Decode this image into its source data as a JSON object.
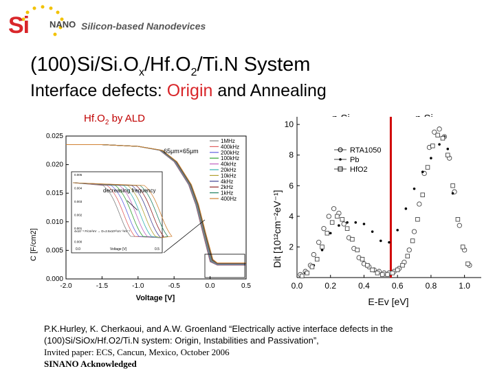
{
  "logo": {
    "brand_si": "Si",
    "brand_nano": "NANO",
    "tagline": "Silicon-based Nanodevices"
  },
  "title_main": "(100)Si/Si.O",
  "title_sub_x": "x",
  "title_mid": "/Hf.O",
  "title_sub_2": "2",
  "title_end": "/Ti.N System",
  "subtitle_before": "Interface defects: ",
  "subtitle_origin": "Origin",
  "subtitle_after": " and Annealing",
  "label_hfo2_a": "Hf.O",
  "label_hfo2_sub": "2",
  "label_hfo2_b": " by ALD",
  "label_psi": "p Si",
  "label_nsi": "n Si",
  "citation": {
    "line1": "P.K.Hurley, K. Cherkaoui, and A.W. Groenland “Electrically active interface defects in the",
    "line2": "(100)Si/SiOx/Hf.O2/Ti.N system: Origin, Instabilities and Passivation”,",
    "line3": "Invited paper: ECS, Cancun, Mexico, October 2006",
    "ack": "SINANO Acknowledged"
  },
  "chart_data": [
    {
      "type": "line",
      "title": "",
      "xlabel": "Voltage [V]",
      "ylabel": "C [F/cm2]",
      "xlim": [
        -2.0,
        0.5
      ],
      "ylim": [
        0.0,
        0.025
      ],
      "xticks": [
        "-2.0",
        "-1.5",
        "-1.0",
        "-0.5",
        "0.0",
        "0.5"
      ],
      "yticks": [
        "0.000",
        "0.005",
        "0.010",
        "0.015",
        "0.020",
        "0.025"
      ],
      "annotation_size": "65μm×65μm",
      "legend_position": "top-right",
      "series": [
        {
          "name": "1MHz",
          "color": "#7f7f7f"
        },
        {
          "name": "400kHz",
          "color": "#e06060"
        },
        {
          "name": "200kHz",
          "color": "#6060e0"
        },
        {
          "name": "100kHz",
          "color": "#30a030"
        },
        {
          "name": "40kHz",
          "color": "#c060c0"
        },
        {
          "name": "20kHz",
          "color": "#30b0b0"
        },
        {
          "name": "10kHz",
          "color": "#b0a030"
        },
        {
          "name": "4kHz",
          "color": "#404090"
        },
        {
          "name": "2kHz",
          "color": "#902020"
        },
        {
          "name": "1kHz",
          "color": "#208060"
        },
        {
          "name": "400Hz",
          "color": "#d08030"
        }
      ],
      "curve_shape": {
        "x": [
          -2.0,
          -1.5,
          -1.0,
          -0.7,
          -0.5,
          -0.3,
          -0.2,
          -0.1,
          0.0,
          0.1,
          0.5
        ],
        "y": [
          0.0235,
          0.0235,
          0.0232,
          0.0225,
          0.0205,
          0.0165,
          0.013,
          0.008,
          0.003,
          0.0024,
          0.0024
        ]
      },
      "inset": {
        "xlabel": "Voltage [V]",
        "xticks": [
          "0.0",
          "0.5"
        ],
        "yticks": [
          "0.005",
          "0.004",
          "0.003",
          "0.002",
          "0.001",
          "0.000"
        ],
        "annotation": "decreasing frequency",
        "note": "4x10⁻⁴ F/cm²eV → D=2.5x10¹²cm⁻²eV⁻¹"
      }
    },
    {
      "type": "scatter",
      "title": "",
      "xlabel": "E-Ev [eV]",
      "ylabel": "Dit [10¹²cm⁻²eV⁻¹]",
      "xlim": [
        0.0,
        1.1
      ],
      "ylim": [
        0,
        10.5
      ],
      "xticks": [
        "0.0",
        "0.2",
        "0.4",
        "0.6",
        "0.8",
        "1.0"
      ],
      "yticks": [
        "2",
        "4",
        "6",
        "8",
        "10"
      ],
      "vertical_marker_x": 0.56,
      "legend_position": "top-left",
      "series": [
        {
          "name": "RTA1050",
          "marker": "circle",
          "x": [
            0.02,
            0.05,
            0.08,
            0.1,
            0.13,
            0.16,
            0.19,
            0.22,
            0.25,
            0.28,
            0.31,
            0.34,
            0.37,
            0.4,
            0.43,
            0.46,
            0.49,
            0.52,
            0.55,
            0.58,
            0.61,
            0.64,
            0.67,
            0.7,
            0.73,
            0.76,
            0.79,
            0.82,
            0.85,
            0.88,
            0.91,
            0.94,
            0.97,
            1.0,
            1.03
          ],
          "y": [
            0.2,
            0.4,
            0.8,
            1.5,
            2.3,
            3.2,
            4.0,
            4.5,
            4.2,
            3.5,
            2.6,
            1.9,
            1.3,
            0.9,
            0.7,
            0.5,
            0.4,
            0.3,
            0.3,
            0.4,
            0.6,
            1.0,
            1.8,
            3.0,
            4.8,
            6.8,
            8.5,
            9.5,
            9.7,
            9.2,
            7.8,
            5.6,
            3.4,
            1.8,
            0.8
          ]
        },
        {
          "name": "Pb",
          "marker": "dot",
          "x": [
            0.05,
            0.1,
            0.15,
            0.2,
            0.25,
            0.3,
            0.35,
            0.4,
            0.45,
            0.5,
            0.55,
            0.6,
            0.65,
            0.7,
            0.75,
            0.8,
            0.85,
            0.88,
            0.9,
            0.93
          ],
          "y": [
            0.3,
            0.8,
            1.8,
            2.9,
            3.4,
            3.6,
            3.6,
            3.5,
            3.0,
            2.4,
            2.3,
            3.1,
            4.5,
            5.8,
            6.9,
            7.8,
            8.7,
            9.2,
            8.4,
            5.5
          ]
        },
        {
          "name": "HfO2",
          "marker": "square",
          "x": [
            0.03,
            0.06,
            0.09,
            0.12,
            0.15,
            0.18,
            0.21,
            0.24,
            0.27,
            0.3,
            0.33,
            0.36,
            0.39,
            0.42,
            0.45,
            0.48,
            0.51,
            0.54,
            0.57,
            0.6,
            0.63,
            0.66,
            0.69,
            0.72,
            0.75,
            0.78,
            0.81,
            0.84,
            0.87,
            0.9,
            0.93,
            0.96,
            0.99,
            1.02
          ],
          "y": [
            0.1,
            0.3,
            0.7,
            1.2,
            2.0,
            2.9,
            3.6,
            4.0,
            3.8,
            3.2,
            2.5,
            1.8,
            1.2,
            0.8,
            0.5,
            0.3,
            0.2,
            0.2,
            0.3,
            0.5,
            0.8,
            1.4,
            2.4,
            3.8,
            5.4,
            7.2,
            8.6,
            9.3,
            9.1,
            8.0,
            6.0,
            3.8,
            2.0,
            0.9
          ]
        }
      ]
    }
  ]
}
